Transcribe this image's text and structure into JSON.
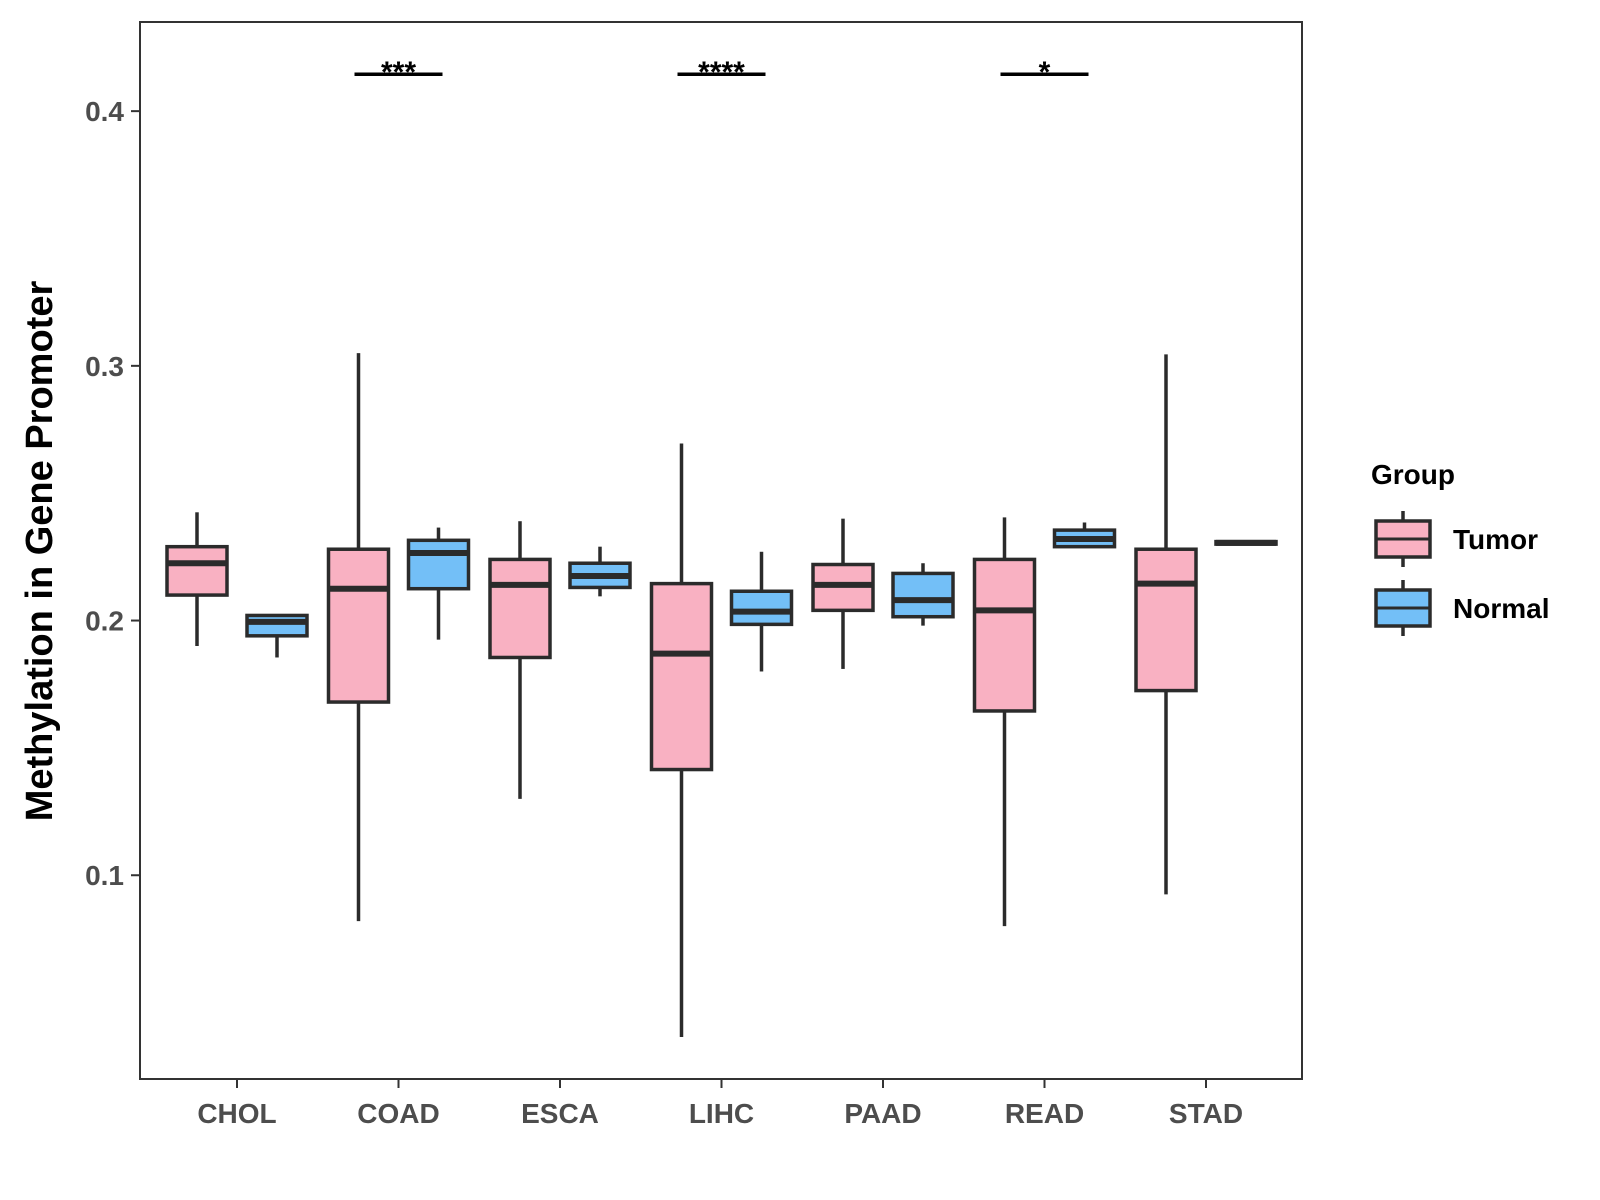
{
  "chart_data": {
    "type": "boxplot",
    "title": "",
    "xlabel": "",
    "ylabel": "Methylation in Gene Promoter",
    "ylim": [
      0.02,
      0.435
    ],
    "yticks": [
      0.1,
      0.2,
      0.3,
      0.4
    ],
    "ytick_labels": [
      "0.1",
      "0.2",
      "0.3",
      "0.4"
    ],
    "grid": false,
    "categories": [
      "CHOL",
      "COAD",
      "ESCA",
      "LIHC",
      "PAAD",
      "READ",
      "STAD"
    ],
    "legend": {
      "title": "Group",
      "position": "right",
      "entries": [
        {
          "name": "Tumor",
          "color": "#f9b1c2"
        },
        {
          "name": "Normal",
          "color": "#73bff7"
        }
      ]
    },
    "series": [
      {
        "name": "Tumor",
        "color": "#f9b1c2",
        "boxes": [
          {
            "category": "CHOL",
            "whisker_low": 0.19,
            "q1": 0.21,
            "median": 0.2225,
            "q3": 0.229,
            "whisker_high": 0.2425
          },
          {
            "category": "COAD",
            "whisker_low": 0.082,
            "q1": 0.168,
            "median": 0.2125,
            "q3": 0.228,
            "whisker_high": 0.305
          },
          {
            "category": "ESCA",
            "whisker_low": 0.13,
            "q1": 0.1855,
            "median": 0.214,
            "q3": 0.224,
            "whisker_high": 0.239
          },
          {
            "category": "LIHC",
            "whisker_low": 0.0365,
            "q1": 0.1415,
            "median": 0.187,
            "q3": 0.2145,
            "whisker_high": 0.2695
          },
          {
            "category": "PAAD",
            "whisker_low": 0.181,
            "q1": 0.204,
            "median": 0.214,
            "q3": 0.222,
            "whisker_high": 0.24
          },
          {
            "category": "READ",
            "whisker_low": 0.08,
            "q1": 0.1645,
            "median": 0.204,
            "q3": 0.224,
            "whisker_high": 0.2405
          },
          {
            "category": "STAD",
            "whisker_low": 0.0925,
            "q1": 0.1725,
            "median": 0.2145,
            "q3": 0.228,
            "whisker_high": 0.3045
          }
        ]
      },
      {
        "name": "Normal",
        "color": "#73bff7",
        "boxes": [
          {
            "category": "CHOL",
            "whisker_low": 0.1855,
            "q1": 0.194,
            "median": 0.1995,
            "q3": 0.202,
            "whisker_high": 0.202
          },
          {
            "category": "COAD",
            "whisker_low": 0.1925,
            "q1": 0.2125,
            "median": 0.2265,
            "q3": 0.2315,
            "whisker_high": 0.2365
          },
          {
            "category": "ESCA",
            "whisker_low": 0.2095,
            "q1": 0.213,
            "median": 0.2175,
            "q3": 0.2225,
            "whisker_high": 0.229
          },
          {
            "category": "LIHC",
            "whisker_low": 0.18,
            "q1": 0.1985,
            "median": 0.2035,
            "q3": 0.2115,
            "whisker_high": 0.227
          },
          {
            "category": "PAAD",
            "whisker_low": 0.198,
            "q1": 0.2015,
            "median": 0.208,
            "q3": 0.2185,
            "whisker_high": 0.2225
          },
          {
            "category": "READ",
            "whisker_low": 0.2285,
            "q1": 0.229,
            "median": 0.232,
            "q3": 0.2355,
            "whisker_high": 0.2385
          },
          {
            "category": "STAD",
            "whisker_low": 0.23,
            "q1": 0.23,
            "median": 0.2305,
            "q3": 0.231,
            "whisker_high": 0.231
          }
        ]
      }
    ],
    "annotations": [
      {
        "category": "COAD",
        "label": "***",
        "y": 0.4145
      },
      {
        "category": "LIHC",
        "label": "****",
        "y": 0.4145
      },
      {
        "category": "READ",
        "label": "*",
        "y": 0.4145
      }
    ]
  }
}
